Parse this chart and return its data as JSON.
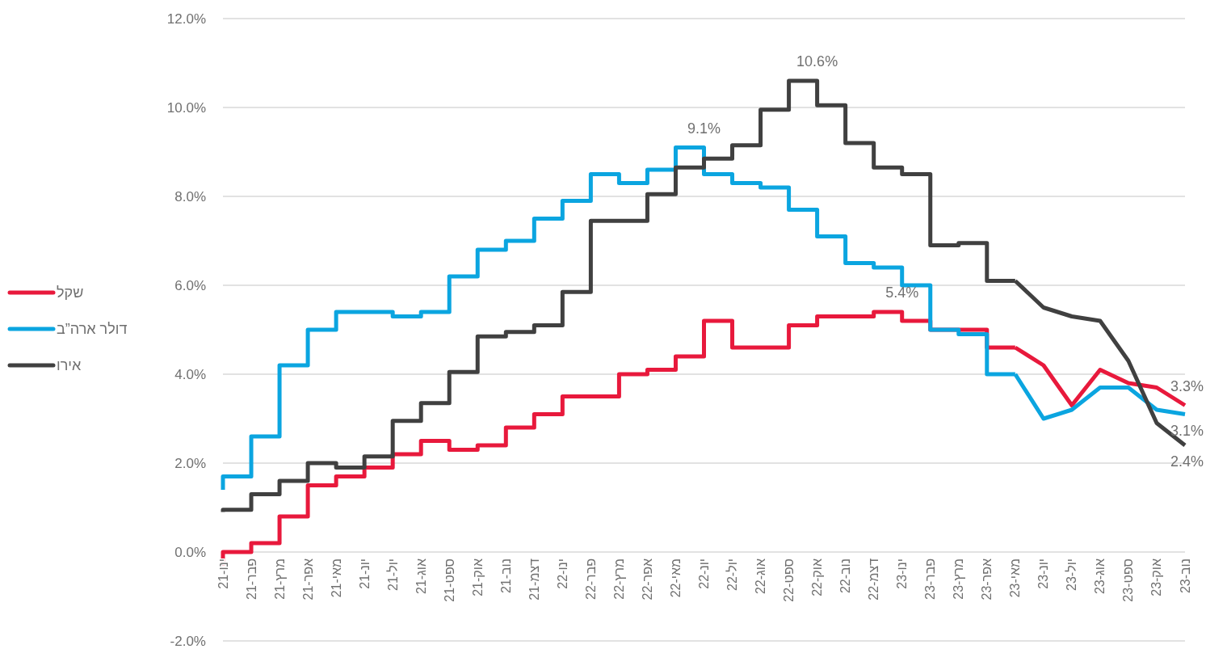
{
  "chart_data": {
    "type": "step",
    "categories": [
      "ינו-21",
      "פבר-21",
      "מרץ-21",
      "אפר-21",
      "מאי-21",
      "יונ-21",
      "יול-21",
      "אוג-21",
      "ספט-21",
      "אוק-21",
      "נוב-21",
      "דצמ-21",
      "ינו-22",
      "פבר-22",
      "מרץ-22",
      "אפר-22",
      "מאי-22",
      "יונ-22",
      "יול-22",
      "אוג-22",
      "ספט-22",
      "אוק-22",
      "נוב-22",
      "דצמ-22",
      "ינו-23",
      "פבר-23",
      "מרץ-23",
      "אפר-23",
      "מאי-23",
      "יונ-23",
      "יול-23",
      "אוג-23",
      "ספט-23",
      "אוק-23",
      "נוב-23"
    ],
    "series": [
      {
        "name": "שקל",
        "color": "#e8193c",
        "values": [
          -0.3,
          0.0,
          0.2,
          0.8,
          1.5,
          1.7,
          1.9,
          2.2,
          2.5,
          2.3,
          2.4,
          2.8,
          3.1,
          3.5,
          3.5,
          4.0,
          4.1,
          4.4,
          5.2,
          4.6,
          4.6,
          5.1,
          5.3,
          5.3,
          5.4,
          5.2,
          5.0,
          5.0,
          4.6,
          null,
          null,
          null,
          null,
          null,
          null
        ]
      },
      {
        "name": "דולר ארה”ב",
        "color": "#0ba5e0",
        "values": [
          1.4,
          1.7,
          2.6,
          4.2,
          5.0,
          5.4,
          5.4,
          5.3,
          5.4,
          6.2,
          6.8,
          7.0,
          7.5,
          7.9,
          8.5,
          8.3,
          8.6,
          9.1,
          8.5,
          8.3,
          8.2,
          7.7,
          7.1,
          6.5,
          6.4,
          6.0,
          5.0,
          4.9,
          4.0,
          null,
          null,
          null,
          null,
          null,
          null
        ]
      },
      {
        "name": "אירו",
        "color": "#404040",
        "values": [
          0.9,
          0.95,
          1.3,
          1.6,
          2.0,
          1.9,
          2.15,
          2.95,
          3.35,
          4.05,
          4.85,
          4.95,
          5.1,
          5.85,
          7.45,
          7.45,
          8.05,
          8.65,
          8.85,
          9.15,
          9.95,
          10.6,
          10.05,
          9.2,
          8.65,
          8.5,
          6.9,
          6.95,
          6.1,
          null,
          null,
          null,
          null,
          null,
          null
        ]
      },
      {
        "type": "line",
        "color": "#e8193c",
        "values": [
          null,
          null,
          null,
          null,
          null,
          null,
          null,
          null,
          null,
          null,
          null,
          null,
          null,
          null,
          null,
          null,
          null,
          null,
          null,
          null,
          null,
          null,
          null,
          null,
          null,
          null,
          null,
          null,
          4.6,
          4.2,
          3.3,
          4.1,
          3.8,
          3.7,
          3.3
        ]
      },
      {
        "type": "line",
        "color": "#0ba5e0",
        "values": [
          null,
          null,
          null,
          null,
          null,
          null,
          null,
          null,
          null,
          null,
          null,
          null,
          null,
          null,
          null,
          null,
          null,
          null,
          null,
          null,
          null,
          null,
          null,
          null,
          null,
          null,
          null,
          null,
          4.0,
          3.0,
          3.2,
          3.7,
          3.7,
          3.2,
          3.1
        ]
      },
      {
        "type": "line",
        "color": "#404040",
        "values": [
          null,
          null,
          null,
          null,
          null,
          null,
          null,
          null,
          null,
          null,
          null,
          null,
          null,
          null,
          null,
          null,
          null,
          null,
          null,
          null,
          null,
          null,
          null,
          null,
          null,
          null,
          null,
          null,
          6.1,
          5.5,
          5.3,
          5.2,
          4.3,
          2.9,
          2.4
        ]
      }
    ],
    "ylim": [
      -2,
      12
    ],
    "yticks": [
      {
        "value": -2,
        "label": "-2.0%"
      },
      {
        "value": 0,
        "label": "0.0%"
      },
      {
        "value": 2,
        "label": "2.0%"
      },
      {
        "value": 4,
        "label": "4.0%"
      },
      {
        "value": 6,
        "label": "6.0%"
      },
      {
        "value": 8,
        "label": "8.0%"
      },
      {
        "value": 10,
        "label": "10.0%"
      },
      {
        "value": 12,
        "label": "12.0%"
      }
    ],
    "grid": "y",
    "legend": "left",
    "annotations": [
      {
        "text": "9.1%",
        "x": "יונ-22",
        "y": 9.1
      },
      {
        "text": "10.6%",
        "x": "אוק-22",
        "y": 10.6
      },
      {
        "text": "5.4%",
        "x": "ינו-23",
        "y": 5.4
      },
      {
        "text": "3.3%",
        "x": "נוב-23",
        "y": 3.3
      },
      {
        "text": "3.1%",
        "x": "נוב-23",
        "y": 3.1
      },
      {
        "text": "2.4%",
        "x": "נוב-23",
        "y": 2.4
      }
    ]
  }
}
